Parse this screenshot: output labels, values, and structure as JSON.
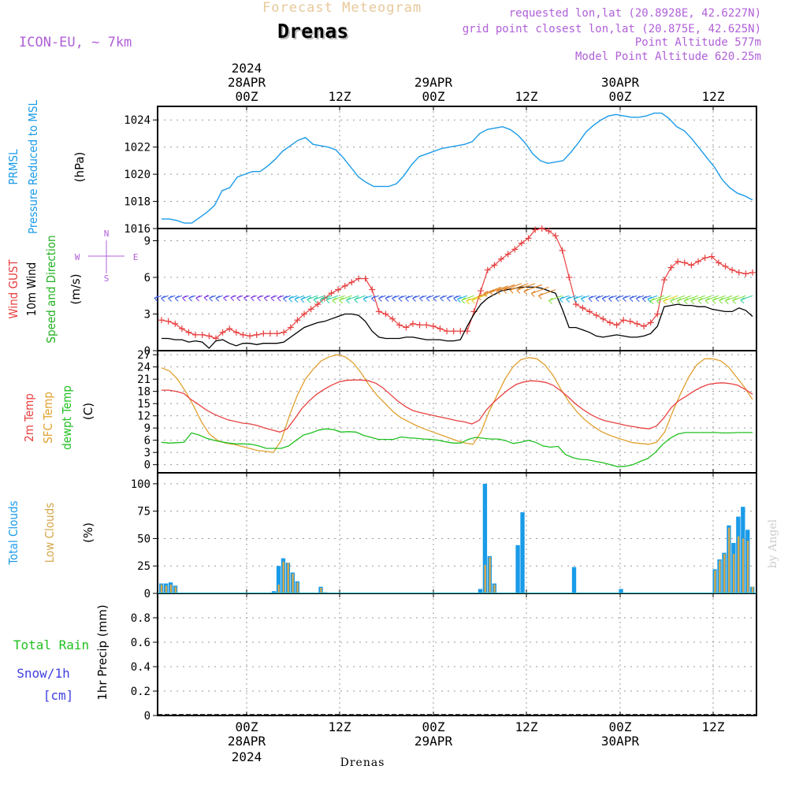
{
  "header": {
    "title": "Forecast Meteogram",
    "station": "Drenas",
    "model": "ICON-EU, ~ 7km",
    "requested": "requested lon,lat (20.8928E, 42.6227N)",
    "grid_point": "grid point closest lon,lat (20.875E, 42.625N)",
    "point_altitude": "Point Altitude 577m",
    "model_altitude": "Model Point Altitude 620.25m"
  },
  "footer": {
    "station": "Drenas",
    "credit": "by Angel"
  },
  "time_axis": {
    "ticks": [
      "00Z",
      "12Z",
      "00Z",
      "12Z",
      "00Z",
      "12Z"
    ],
    "dates": [
      "28APR",
      "",
      "29APR",
      "",
      "30APR",
      ""
    ],
    "year": "2024"
  },
  "colors": {
    "pressure": "#1a9be8",
    "gust": "#e84040",
    "wind": "#000000",
    "temp2m": "#e84040",
    "sfc": "#e0a030",
    "dewpt": "#20c020",
    "total_clouds": "#1a9be8",
    "low_clouds": "#d4a84c",
    "rain": "#20c020",
    "snow": "#4040e0"
  },
  "chart_data": [
    {
      "type": "line",
      "ylabel_lines": [
        "PRMSL",
        "Pressure Reduced to MSL"
      ],
      "unit": "(hPa)",
      "ylim": [
        1016,
        1025
      ],
      "yticks": [
        1016,
        1018,
        1020,
        1022,
        1024
      ],
      "series": [
        {
          "name": "PRMSL",
          "values": [
            1016.7,
            1016.7,
            1016.6,
            1016.4,
            1016.4,
            1016.8,
            1017.2,
            1017.7,
            1018.8,
            1019.0,
            1019.8,
            1020.0,
            1020.2,
            1020.2,
            1020.6,
            1021.1,
            1021.7,
            1022.1,
            1022.5,
            1022.7,
            1022.2,
            1022.1,
            1022.0,
            1021.8,
            1021.2,
            1020.5,
            1019.8,
            1019.4,
            1019.1,
            1019.1,
            1019.1,
            1019.3,
            1019.9,
            1020.7,
            1021.3,
            1021.5,
            1021.7,
            1021.9,
            1022.0,
            1022.1,
            1022.2,
            1022.4,
            1023.0,
            1023.3,
            1023.4,
            1023.5,
            1023.3,
            1022.9,
            1022.3,
            1021.5,
            1021.0,
            1020.8,
            1020.9,
            1021.0,
            1021.6,
            1022.3,
            1023.1,
            1023.6,
            1024.0,
            1024.3,
            1024.4,
            1024.3,
            1024.2,
            1024.2,
            1024.3,
            1024.5,
            1024.5,
            1024.1,
            1023.5,
            1023.2,
            1022.6,
            1021.9,
            1021.2,
            1020.5,
            1019.6,
            1019.0,
            1018.6,
            1018.4,
            1018.1
          ]
        }
      ]
    },
    {
      "type": "line",
      "ylabel_lines": [
        "Wind GUST",
        "10m Wind",
        "Speed and Direction"
      ],
      "unit": "(m/s)",
      "compass": [
        "N",
        "S",
        "W",
        "E"
      ],
      "ylim": [
        0,
        10
      ],
      "yticks": [
        0,
        3,
        6,
        9
      ],
      "series": [
        {
          "name": "Wind GUST",
          "values": [
            2.5,
            2.4,
            2.2,
            1.8,
            1.5,
            1.3,
            1.3,
            1.2,
            1.0,
            1.5,
            1.8,
            1.5,
            1.3,
            1.2,
            1.3,
            1.4,
            1.4,
            1.4,
            1.5,
            1.9,
            2.5,
            3.0,
            3.4,
            3.8,
            4.3,
            4.7,
            5.0,
            5.3,
            5.6,
            5.9,
            5.9,
            5.0,
            3.2,
            3.0,
            2.6,
            2.1,
            1.9,
            2.2,
            2.1,
            2.1,
            2.0,
            1.8,
            1.6,
            1.6,
            1.6,
            1.6,
            3.2,
            4.9,
            6.6,
            7.0,
            7.5,
            7.9,
            8.3,
            8.8,
            9.2,
            9.9,
            10.0,
            9.8,
            9.4,
            8.2,
            6.0,
            3.8,
            3.5,
            3.2,
            2.9,
            2.6,
            2.3,
            2.1,
            2.5,
            2.4,
            2.2,
            2.0,
            2.3,
            3.0,
            5.8,
            6.8,
            7.3,
            7.2,
            7.0,
            7.3,
            7.6,
            7.7,
            7.2,
            6.9,
            6.6,
            6.4,
            6.3,
            6.4
          ]
        },
        {
          "name": "10m Wind",
          "values": [
            1.0,
            1.0,
            0.9,
            0.9,
            0.7,
            0.8,
            0.7,
            0.2,
            0.8,
            0.9,
            0.6,
            0.4,
            0.6,
            0.6,
            0.5,
            0.6,
            0.6,
            0.6,
            0.7,
            1.1,
            1.5,
            1.9,
            2.1,
            2.3,
            2.4,
            2.6,
            2.8,
            3.0,
            3.0,
            2.9,
            2.4,
            1.6,
            1.1,
            1.0,
            1.0,
            1.0,
            1.1,
            1.1,
            1.0,
            0.9,
            0.9,
            0.9,
            0.8,
            0.8,
            0.9,
            2.0,
            3.0,
            3.8,
            4.3,
            4.6,
            4.9,
            5.0,
            5.1,
            5.2,
            5.2,
            5.2,
            5.1,
            4.9,
            4.7,
            3.4,
            1.9,
            1.9,
            1.7,
            1.5,
            1.2,
            1.1,
            1.2,
            1.3,
            1.2,
            1.1,
            1.1,
            1.2,
            1.4,
            2.0,
            3.6,
            3.7,
            3.8,
            3.7,
            3.7,
            3.6,
            3.6,
            3.4,
            3.3,
            3.2,
            3.2,
            3.5,
            3.3,
            2.8
          ]
        }
      ]
    },
    {
      "type": "line",
      "ylabel_lines": [
        "2m Temp",
        "SFC Temp",
        "dewpt Temp"
      ],
      "unit": "(C)",
      "ylim": [
        -2,
        28
      ],
      "yticks": [
        0,
        3,
        6,
        9,
        12,
        15,
        18,
        21,
        24,
        27
      ],
      "series": [
        {
          "name": "2m Temp",
          "values": [
            18.3,
            18.3,
            18.0,
            17.5,
            16.0,
            14.8,
            13.5,
            12.5,
            11.7,
            11.0,
            10.6,
            10.2,
            10.0,
            9.6,
            9.0,
            8.5,
            8.0,
            8.8,
            11.2,
            13.8,
            15.7,
            17.3,
            18.5,
            19.5,
            20.3,
            20.7,
            20.8,
            20.8,
            20.6,
            20.0,
            18.8,
            17.2,
            15.6,
            14.3,
            13.3,
            12.8,
            12.4,
            12.0,
            11.6,
            11.2,
            10.8,
            10.5,
            10.0,
            10.9,
            13.5,
            15.4,
            17.0,
            18.5,
            19.7,
            20.3,
            20.6,
            20.5,
            20.2,
            19.5,
            18.2,
            16.7,
            15.0,
            13.6,
            12.4,
            11.5,
            10.8,
            10.4,
            10.0,
            9.6,
            9.3,
            9.0,
            8.8,
            9.5,
            11.5,
            14.0,
            15.7,
            16.8,
            18.0,
            19.0,
            19.7,
            20.0,
            20.1,
            19.9,
            19.5,
            18.5,
            17.3
          ]
        },
        {
          "name": "SFC Temp",
          "values": [
            23.8,
            23.0,
            21.0,
            18.0,
            14.5,
            10.5,
            7.5,
            6.0,
            5.3,
            5.0,
            4.5,
            4.0,
            3.5,
            3.3,
            3.0,
            6.0,
            12.0,
            17.0,
            21.0,
            23.5,
            25.5,
            26.5,
            27.0,
            26.5,
            25.0,
            22.5,
            19.5,
            17.0,
            15.0,
            13.0,
            11.5,
            10.5,
            9.5,
            8.7,
            8.0,
            7.3,
            6.6,
            5.9,
            5.3,
            5.0,
            8.0,
            13.0,
            17.0,
            21.0,
            24.0,
            25.8,
            26.3,
            26.0,
            24.5,
            22.0,
            18.5,
            15.5,
            13.0,
            11.0,
            9.5,
            8.2,
            7.3,
            6.6,
            6.0,
            5.4,
            5.2,
            5.0,
            5.5,
            8.0,
            13.0,
            17.5,
            21.5,
            24.5,
            26.0,
            26.0,
            25.5,
            24.0,
            21.5,
            19.0,
            16.0
          ]
        },
        {
          "name": "dewpt Temp",
          "values": [
            5.5,
            5.3,
            5.4,
            5.5,
            7.8,
            7.3,
            6.5,
            6.0,
            5.6,
            5.3,
            5.1,
            5.1,
            5.0,
            4.6,
            4.0,
            4.0,
            4.0,
            4.6,
            6.0,
            7.3,
            7.8,
            8.5,
            8.8,
            8.6,
            8.0,
            8.1,
            8.0,
            7.2,
            6.7,
            6.2,
            6.2,
            6.2,
            6.8,
            6.6,
            6.5,
            6.3,
            6.2,
            6.0,
            5.6,
            5.3,
            5.3,
            6.2,
            6.7,
            6.5,
            6.3,
            6.3,
            5.9,
            5.2,
            5.5,
            6.0,
            5.5,
            4.6,
            4.3,
            4.5,
            2.5,
            1.7,
            1.3,
            1.2,
            0.8,
            0.5,
            0.0,
            -0.5,
            -0.4,
            0.0,
            0.8,
            1.5,
            3.0,
            5.0,
            6.5,
            7.5,
            7.9,
            7.9,
            7.9,
            7.9,
            7.9,
            7.8,
            7.8,
            7.9,
            7.9,
            7.9
          ]
        }
      ]
    },
    {
      "type": "bar",
      "ylabel_lines": [
        "Total Clouds",
        "Low Clouds"
      ],
      "unit": "(%)",
      "ylim": [
        0,
        110
      ],
      "yticks": [
        0,
        25,
        50,
        75,
        100
      ],
      "series": [
        {
          "name": "Total Clouds",
          "values": [
            9,
            9,
            10,
            7,
            0,
            0,
            0,
            0,
            0,
            0,
            0,
            0,
            0,
            0,
            0,
            0,
            0,
            0,
            0,
            0,
            0,
            0,
            0,
            0,
            2,
            25,
            32,
            28,
            19,
            11,
            0,
            0,
            0,
            0,
            6,
            1,
            0,
            0,
            0,
            0,
            0,
            0,
            0,
            0,
            0,
            0,
            0,
            0,
            0,
            0,
            0,
            0,
            0,
            0,
            0,
            0,
            0,
            0,
            0,
            0,
            0,
            0,
            0,
            0,
            0,
            0,
            0,
            0,
            4,
            100,
            34,
            9,
            0,
            0,
            0,
            0,
            44,
            74,
            0,
            0,
            0,
            0,
            0,
            0,
            0,
            0,
            0,
            0,
            24,
            0,
            0,
            0,
            0,
            0,
            0,
            0,
            0,
            0,
            4,
            0,
            0,
            0,
            0,
            0,
            0,
            0,
            0,
            0,
            0,
            0,
            0,
            0,
            0,
            0,
            0,
            0,
            0,
            0,
            22,
            31,
            37,
            62,
            46,
            70,
            79,
            58,
            6
          ]
        },
        {
          "name": "Low Clouds",
          "values": [
            8,
            7,
            8,
            6,
            0,
            0,
            0,
            0,
            0,
            0,
            0,
            0,
            0,
            0,
            0,
            0,
            0,
            0,
            0,
            0,
            0,
            0,
            0,
            0,
            0,
            8,
            29,
            28,
            18,
            10,
            0,
            0,
            0,
            0,
            5,
            1,
            0,
            0,
            0,
            0,
            0,
            0,
            0,
            0,
            0,
            0,
            0,
            0,
            0,
            0,
            0,
            0,
            0,
            0,
            0,
            0,
            0,
            0,
            0,
            0,
            0,
            0,
            0,
            0,
            0,
            0,
            0,
            0,
            0,
            26,
            33,
            8,
            0,
            0,
            0,
            0,
            0,
            0,
            0,
            0,
            0,
            0,
            0,
            0,
            0,
            0,
            0,
            0,
            0,
            0,
            0,
            0,
            0,
            0,
            0,
            0,
            0,
            0,
            0,
            0,
            0,
            0,
            0,
            0,
            0,
            0,
            0,
            0,
            0,
            0,
            0,
            0,
            0,
            0,
            0,
            0,
            0,
            0,
            21,
            30,
            36,
            60,
            36,
            52,
            50,
            48,
            6
          ]
        }
      ]
    },
    {
      "type": "bar",
      "ylabel_lines": [
        "Total Rain",
        "Snow/1h",
        "[cm]"
      ],
      "unit": "1hr Precip (mm)",
      "ylim": [
        0,
        1
      ],
      "yticks": [
        0,
        0.2,
        0.4,
        0.6,
        0.8
      ],
      "series": [
        {
          "name": "1hr Precip",
          "values": []
        }
      ]
    }
  ],
  "wind_arrows": {
    "colors_by_speed": [
      "#8040e0",
      "#4060e0",
      "#20b0e0",
      "#30d0a0",
      "#80e040",
      "#e0d020",
      "#e08020",
      "#e02080"
    ]
  }
}
